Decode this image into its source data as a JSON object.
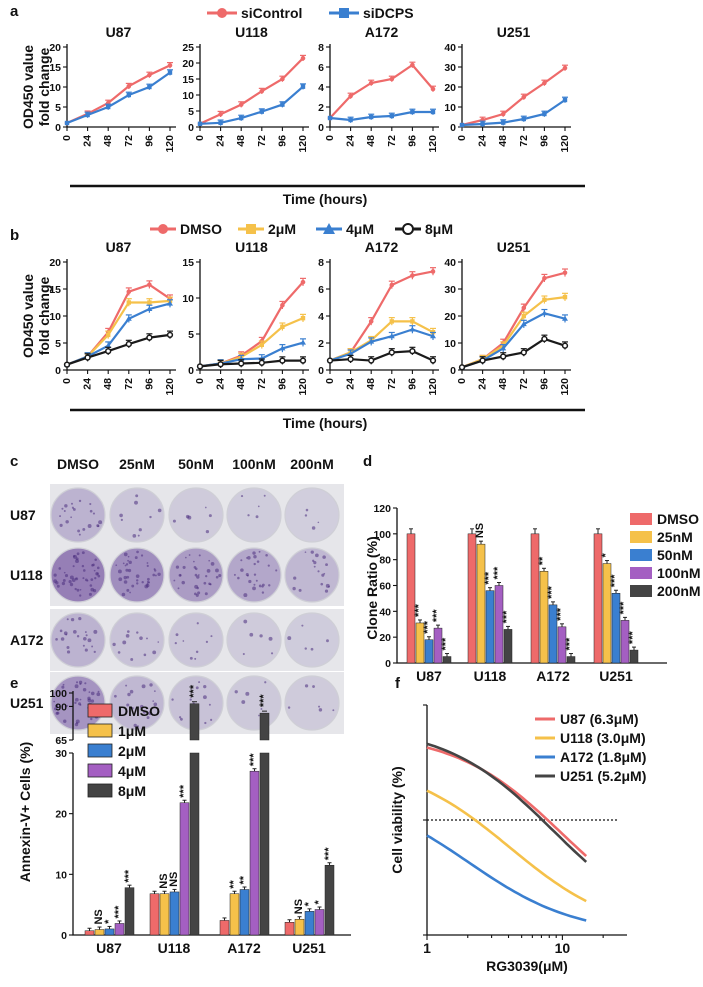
{
  "panels": {
    "a": "a",
    "b": "b",
    "c": "c",
    "d": "d",
    "e": "e",
    "f": "f"
  },
  "colors": {
    "red": "#ee6a6a",
    "blue": "#3a7fd0",
    "yellow": "#f5c14a",
    "purple": "#a45fc2",
    "dark": "#444444",
    "black": "#1a1a1a"
  },
  "panel_a": {
    "legend": [
      "siControl",
      "siDCPS"
    ],
    "ylabel": [
      "OD450 value",
      "fold change"
    ],
    "xlabel": "Time (hours)",
    "xticks": [
      "0",
      "24",
      "48",
      "72",
      "96",
      "120"
    ]
  },
  "panel_b": {
    "legend": [
      "DMSO",
      "2μM",
      "4μM",
      "8μM"
    ],
    "ylabel": [
      "OD450 value",
      "fold change"
    ],
    "xlabel": "Time (hours)",
    "xticks": [
      "0",
      "24",
      "48",
      "72",
      "96",
      "120"
    ]
  },
  "panel_c": {
    "columns": [
      "DMSO",
      "25nM",
      "50nM",
      "100nM",
      "200nM"
    ],
    "rows": [
      "U87",
      "U118",
      "A172",
      "U251"
    ]
  },
  "chart_data": [
    {
      "id": "a-U87",
      "type": "line",
      "title": "U87",
      "xlabel": "Time (hours)",
      "ylabel": "OD450 value fold change",
      "x": [
        0,
        24,
        48,
        72,
        96,
        120
      ],
      "ylim": [
        0,
        20
      ],
      "yticks": [
        0,
        5,
        10,
        15,
        20
      ],
      "series": [
        {
          "name": "siControl",
          "color": "#ee6a6a",
          "values": [
            1,
            3.3,
            6,
            10.2,
            13,
            15.4
          ]
        },
        {
          "name": "siDCPS",
          "color": "#3a7fd0",
          "values": [
            1,
            3,
            5,
            8,
            10,
            13.6
          ]
        }
      ]
    },
    {
      "id": "a-U118",
      "type": "line",
      "title": "U118",
      "x": [
        0,
        24,
        48,
        72,
        96,
        120
      ],
      "ylim": [
        0,
        25
      ],
      "yticks": [
        0,
        5,
        10,
        15,
        20,
        25
      ],
      "series": [
        {
          "name": "siControl",
          "color": "#ee6a6a",
          "values": [
            1,
            4,
            7,
            11.2,
            15,
            21.5
          ]
        },
        {
          "name": "siDCPS",
          "color": "#3a7fd0",
          "values": [
            1,
            1.3,
            2.8,
            4.8,
            7,
            12.6
          ]
        }
      ]
    },
    {
      "id": "a-A172",
      "type": "line",
      "title": "A172",
      "x": [
        0,
        24,
        48,
        72,
        96,
        120
      ],
      "ylim": [
        0,
        8
      ],
      "yticks": [
        0,
        2,
        4,
        6,
        8
      ],
      "series": [
        {
          "name": "siControl",
          "color": "#ee6a6a",
          "values": [
            0.9,
            3.1,
            4.4,
            4.8,
            6.2,
            3.8
          ]
        },
        {
          "name": "siDCPS",
          "color": "#3a7fd0",
          "values": [
            0.9,
            0.7,
            1.0,
            1.1,
            1.5,
            1.5
          ]
        }
      ]
    },
    {
      "id": "a-U251",
      "type": "line",
      "title": "U251",
      "x": [
        0,
        24,
        48,
        72,
        96,
        120
      ],
      "ylim": [
        0,
        40
      ],
      "yticks": [
        0,
        10,
        20,
        30,
        40
      ],
      "series": [
        {
          "name": "siControl",
          "color": "#ee6a6a",
          "values": [
            1,
            3.5,
            6.5,
            15,
            22,
            29.5
          ]
        },
        {
          "name": "siDCPS",
          "color": "#3a7fd0",
          "values": [
            1,
            1.5,
            2.2,
            4,
            6.5,
            13.5
          ]
        }
      ]
    },
    {
      "id": "b-U87",
      "type": "line",
      "title": "U87",
      "x": [
        0,
        24,
        48,
        72,
        96,
        120
      ],
      "ylim": [
        0,
        20
      ],
      "yticks": [
        0,
        5,
        10,
        15,
        20
      ],
      "series": [
        {
          "name": "DMSO",
          "color": "#ee6a6a",
          "values": [
            1,
            2.5,
            7,
            14.5,
            15.8,
            13.2
          ]
        },
        {
          "name": "2μM",
          "color": "#f5c14a",
          "values": [
            1,
            2.5,
            6.5,
            12.5,
            12.5,
            12.8
          ]
        },
        {
          "name": "4μM",
          "color": "#3a7fd0",
          "values": [
            1,
            2.5,
            4.5,
            9.5,
            11.3,
            12.3
          ]
        },
        {
          "name": "8μM",
          "color": "#1a1a1a",
          "values": [
            1,
            2.3,
            3.5,
            4.8,
            6.0,
            6.5
          ]
        }
      ]
    },
    {
      "id": "b-U118",
      "type": "line",
      "title": "U118",
      "x": [
        0,
        24,
        48,
        72,
        96,
        120
      ],
      "ylim": [
        0,
        15
      ],
      "yticks": [
        0,
        5,
        10,
        15
      ],
      "series": [
        {
          "name": "DMSO",
          "color": "#ee6a6a",
          "values": [
            0.5,
            0.9,
            2,
            4,
            9,
            12.2
          ]
        },
        {
          "name": "2μM",
          "color": "#f5c14a",
          "values": [
            0.5,
            0.9,
            1.8,
            3.5,
            6,
            7.2
          ]
        },
        {
          "name": "4μM",
          "color": "#3a7fd0",
          "values": [
            0.5,
            0.9,
            1.5,
            1.6,
            3,
            3.8
          ]
        },
        {
          "name": "8μM",
          "color": "#1a1a1a",
          "values": [
            0.5,
            0.8,
            0.9,
            1,
            1.3,
            1.3
          ]
        }
      ]
    },
    {
      "id": "b-A172",
      "type": "line",
      "title": "A172",
      "x": [
        0,
        24,
        48,
        72,
        96,
        120
      ],
      "ylim": [
        0,
        8
      ],
      "yticks": [
        0,
        2,
        4,
        6,
        8
      ],
      "series": [
        {
          "name": "DMSO",
          "color": "#ee6a6a",
          "values": [
            0.7,
            1.3,
            3.6,
            6.3,
            7.0,
            7.3
          ]
        },
        {
          "name": "2μM",
          "color": "#f5c14a",
          "values": [
            0.7,
            1.3,
            2.2,
            3.6,
            3.6,
            2.8
          ]
        },
        {
          "name": "4μM",
          "color": "#3a7fd0",
          "values": [
            0.7,
            1.2,
            2.1,
            2.5,
            3.0,
            2.5
          ]
        },
        {
          "name": "8μM",
          "color": "#1a1a1a",
          "values": [
            0.7,
            0.8,
            0.7,
            1.3,
            1.4,
            0.7
          ]
        }
      ]
    },
    {
      "id": "b-U251",
      "type": "line",
      "title": "U251",
      "x": [
        0,
        24,
        48,
        72,
        96,
        120
      ],
      "ylim": [
        0,
        40
      ],
      "yticks": [
        0,
        10,
        20,
        30,
        40
      ],
      "series": [
        {
          "name": "DMSO",
          "color": "#ee6a6a",
          "values": [
            1,
            4,
            10,
            23,
            34,
            36
          ]
        },
        {
          "name": "2μM",
          "color": "#f5c14a",
          "values": [
            1,
            4,
            9,
            20,
            26,
            27
          ]
        },
        {
          "name": "4μM",
          "color": "#3a7fd0",
          "values": [
            1,
            3.5,
            8,
            17,
            21,
            19
          ]
        },
        {
          "name": "8μM",
          "color": "#1a1a1a",
          "values": [
            1,
            3.5,
            5,
            6.5,
            11.5,
            9
          ]
        }
      ]
    },
    {
      "id": "d",
      "type": "bar",
      "ylabel": "Clone Ratio (%)",
      "ylim": [
        0,
        120
      ],
      "yticks": [
        0,
        20,
        40,
        60,
        80,
        100,
        120
      ],
      "categories": [
        "U87",
        "U118",
        "A172",
        "U251"
      ],
      "series": [
        {
          "name": "DMSO",
          "color": "#ee6a6a",
          "values": [
            100,
            100,
            100,
            100
          ]
        },
        {
          "name": "25nM",
          "color": "#f5c14a",
          "values": [
            31,
            92,
            71,
            77
          ]
        },
        {
          "name": "50nM",
          "color": "#3a7fd0",
          "values": [
            18,
            56,
            45,
            54
          ]
        },
        {
          "name": "100nM",
          "color": "#a45fc2",
          "values": [
            27,
            60,
            28,
            33
          ]
        },
        {
          "name": "200nM",
          "color": "#444444",
          "values": [
            5,
            26,
            5,
            10
          ]
        }
      ],
      "significance": [
        [
          "",
          "***",
          "***",
          "***",
          "***"
        ],
        [
          "",
          "NS",
          "***",
          "***",
          "***"
        ],
        [
          "",
          "**",
          "***",
          "***",
          "***"
        ],
        [
          "",
          "*",
          "***",
          "***",
          "***"
        ]
      ]
    },
    {
      "id": "e",
      "type": "bar",
      "ylabel": "Annexin-V+ Cells (%)",
      "ylim_lower": [
        0,
        30
      ],
      "yticks_lower": [
        0,
        10,
        20,
        30
      ],
      "ylim_upper": [
        65,
        100
      ],
      "yticks_upper": [
        65,
        90,
        100
      ],
      "categories": [
        "U87",
        "U118",
        "A172",
        "U251"
      ],
      "series": [
        {
          "name": "DMSO",
          "color": "#ee6a6a",
          "values": [
            0.7,
            6.8,
            2.4,
            2.1
          ]
        },
        {
          "name": "1μM",
          "color": "#f5c14a",
          "values": [
            0.9,
            6.8,
            6.8,
            2.6
          ]
        },
        {
          "name": "2μM",
          "color": "#3a7fd0",
          "values": [
            1.0,
            7.1,
            7.5,
            3.9
          ]
        },
        {
          "name": "4μM",
          "color": "#a45fc2",
          "values": [
            1.9,
            21.8,
            27.0,
            4.2
          ]
        },
        {
          "name": "8μM",
          "color": "#444444",
          "values": [
            7.8,
            92,
            85,
            11.5
          ]
        }
      ],
      "significance": [
        [
          "",
          "NS",
          "*",
          "***",
          "***"
        ],
        [
          "",
          "NS",
          "NS",
          "***",
          "***"
        ],
        [
          "",
          "**",
          "**",
          "***",
          "***"
        ],
        [
          "",
          "NS",
          "*",
          "*",
          "***"
        ]
      ]
    },
    {
      "id": "f",
      "type": "line",
      "xlabel": "RG3039(μM)",
      "ylabel": "Cell viability (%)",
      "xscale": "log",
      "xlim": [
        1,
        30
      ],
      "ylim": [
        0,
        100
      ],
      "yticks": [
        0,
        50,
        100
      ],
      "xticks": [
        1,
        10
      ],
      "reference_line": 50,
      "series": [
        {
          "name": "U87 (6.3μM)",
          "color": "#ee6a6a",
          "ic50": 6.3
        },
        {
          "name": "U118 (3.0μM)",
          "color": "#f5c14a",
          "ic50": 3.0
        },
        {
          "name": "A172 (1.8μM)",
          "color": "#3a7fd0",
          "ic50": 1.8
        },
        {
          "name": "U251 (5.2μM)",
          "color": "#444444",
          "ic50": 5.2
        }
      ]
    }
  ]
}
